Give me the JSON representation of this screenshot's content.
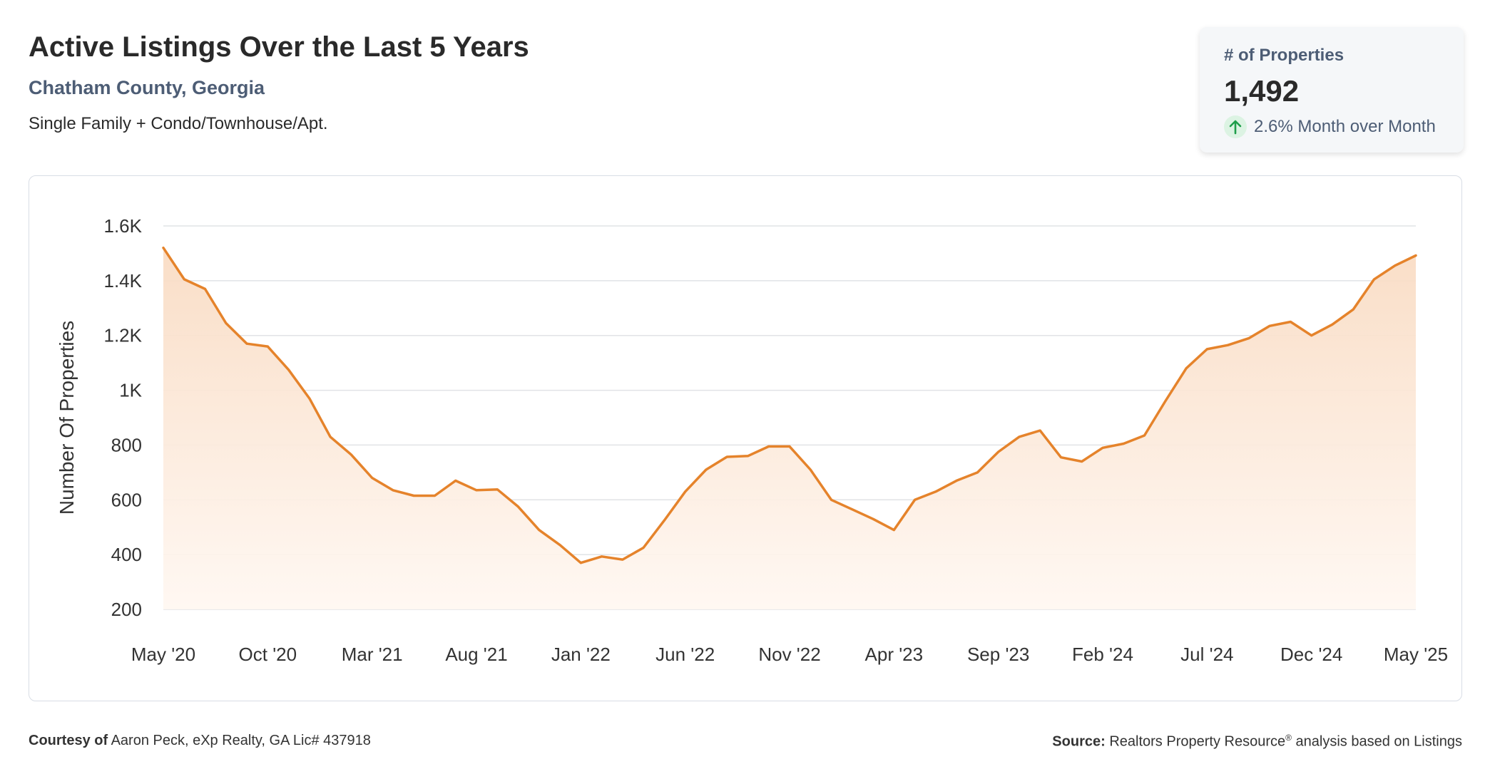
{
  "header": {
    "title": "Active Listings Over the Last 5 Years",
    "location": "Chatham County, Georgia",
    "property_types": "Single Family + Condo/Townhouse/Apt."
  },
  "kpi": {
    "label": "# of Properties",
    "value": "1,492",
    "change_text": "2.6% Month over Month",
    "change_direction": "up",
    "change_icon": "arrow-up-icon",
    "up_color": "#1e9e4a"
  },
  "footer": {
    "courtesy_label": "Courtesy of",
    "courtesy_text": "Aaron Peck, eXp Realty, GA Lic# 437918",
    "source_label": "Source:",
    "source_text_before": "Realtors Property Resource",
    "source_trademark": "®",
    "source_text_after": "analysis based on Listings"
  },
  "colors": {
    "line": "#e5832b",
    "area_top": "#f9dcc4",
    "area_bottom": "#fff7f1",
    "grid": "#e1e3e6"
  },
  "chart_data": {
    "type": "area",
    "title": "",
    "xlabel": "",
    "ylabel": "Number Of Properties",
    "ylim": [
      200,
      1600
    ],
    "y_ticks": [
      1600,
      1400,
      1200,
      1000,
      800,
      600,
      400,
      200
    ],
    "y_tick_labels": [
      "1.6K",
      "1.4K",
      "1.2K",
      "1K",
      "800",
      "600",
      "400",
      "200"
    ],
    "x_tick_labels": [
      "May '20",
      "Oct '20",
      "Mar '21",
      "Aug '21",
      "Jan '22",
      "Jun '22",
      "Nov '22",
      "Apr '23",
      "Sep '23",
      "Feb '24",
      "Jul '24",
      "Dec '24",
      "May '25"
    ],
    "x_tick_every": 5,
    "grid": true,
    "series": [
      {
        "values": [
          1520,
          1405,
          1370,
          1245,
          1170,
          1160,
          1075,
          970,
          830,
          765,
          680,
          635,
          615,
          615,
          670,
          635,
          638,
          575,
          490,
          435,
          370,
          393,
          382,
          425,
          525,
          630,
          710,
          757,
          760,
          795,
          795,
          710,
          600,
          565,
          530,
          490,
          600,
          630,
          670,
          700,
          775,
          830,
          853,
          755,
          740,
          790,
          805,
          835,
          960,
          1080,
          1150,
          1165,
          1190,
          1235,
          1250,
          1200,
          1240,
          1295,
          1405,
          1455,
          1492
        ]
      }
    ]
  }
}
